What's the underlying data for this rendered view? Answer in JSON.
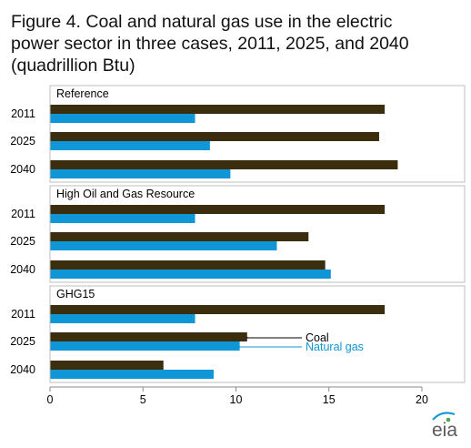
{
  "chart_data": {
    "type": "bar",
    "orientation": "horizontal",
    "title": "Figure 4. Coal and natural gas use in the electric power sector in three cases, 2011, 2025, and 2040 (quadrillion Btu)",
    "xlim": [
      0,
      20
    ],
    "xticks": [
      "0",
      "5",
      "10",
      "15",
      "20"
    ],
    "grid": false,
    "series_colors": {
      "Coal": "#3b2e0e",
      "Natural gas": "#0f96d6"
    },
    "groups": [
      {
        "label": "Reference",
        "rows": [
          {
            "year": "2011",
            "coal": 18.0,
            "natural_gas": 7.8
          },
          {
            "year": "2025",
            "coal": 17.7,
            "natural_gas": 8.6
          },
          {
            "year": "2040",
            "coal": 18.7,
            "natural_gas": 9.7
          }
        ]
      },
      {
        "label": "High Oil and Gas Resource",
        "rows": [
          {
            "year": "2011",
            "coal": 18.0,
            "natural_gas": 7.8
          },
          {
            "year": "2025",
            "coal": 13.9,
            "natural_gas": 12.2
          },
          {
            "year": "2040",
            "coal": 14.8,
            "natural_gas": 15.1
          }
        ]
      },
      {
        "label": "GHG15",
        "rows": [
          {
            "year": "2011",
            "coal": 18.0,
            "natural_gas": 7.8
          },
          {
            "year": "2025",
            "coal": 10.6,
            "natural_gas": 10.2
          },
          {
            "year": "2040",
            "coal": 6.1,
            "natural_gas": 8.8
          }
        ]
      }
    ],
    "annotations": [
      {
        "text": "Coal",
        "color": "#000000"
      },
      {
        "text": "Natural gas",
        "color": "#0f96d6"
      }
    ]
  },
  "logo": {
    "text": "eia"
  }
}
